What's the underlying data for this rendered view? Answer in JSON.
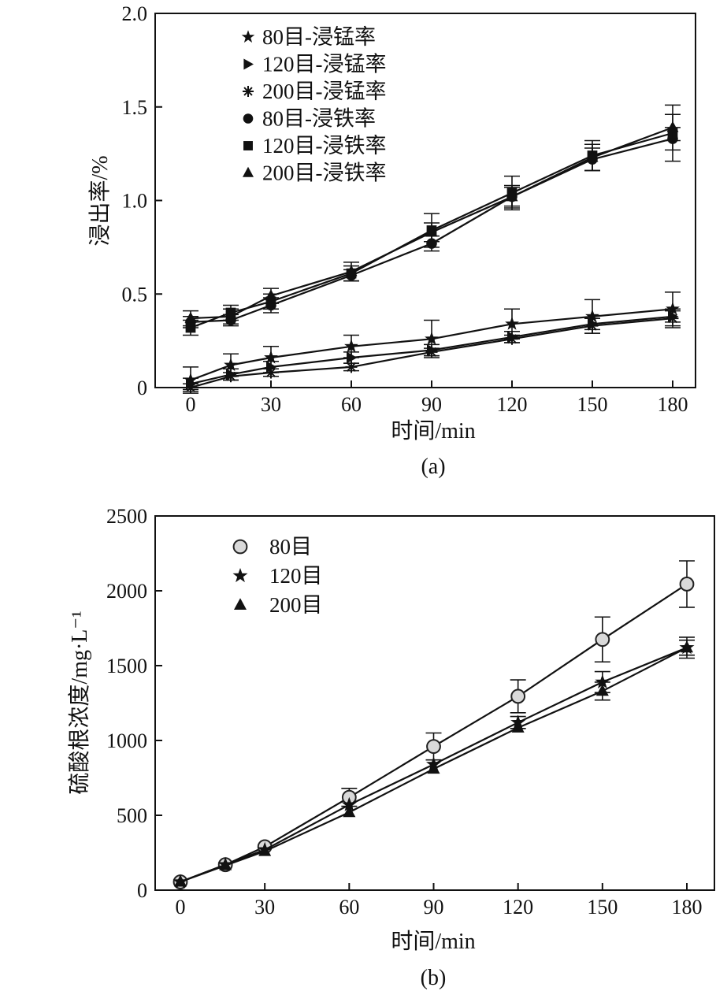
{
  "chart_data": [
    {
      "type": "line",
      "panel_label": "(a)",
      "xlabel": "时间/min",
      "ylabel": "浸出率/%",
      "xlim": [
        -12,
        190
      ],
      "ylim": [
        0,
        2.0
      ],
      "xticks": [
        0,
        30,
        60,
        90,
        120,
        150,
        180
      ],
      "xtick_labels": [
        "0",
        "30",
        "60",
        "90",
        "120",
        "150",
        "180"
      ],
      "yticks": [
        0,
        0.5,
        1.0,
        1.5,
        2.0
      ],
      "ytick_labels": [
        "0",
        "0.5",
        "1.0",
        "1.5",
        "2.0"
      ],
      "legend_position": "top-left",
      "series": [
        {
          "name": "80目-浸锰率",
          "marker": "star",
          "x": [
            0,
            15,
            30,
            60,
            90,
            120,
            150,
            180
          ],
          "values": [
            0.04,
            0.12,
            0.16,
            0.22,
            0.26,
            0.34,
            0.38,
            0.42
          ],
          "errors": [
            0.07,
            0.06,
            0.06,
            0.06,
            0.1,
            0.08,
            0.09,
            0.09
          ]
        },
        {
          "name": "120目-浸锰率",
          "marker": "triangle-right",
          "x": [
            0,
            15,
            30,
            60,
            90,
            120,
            150,
            180
          ],
          "values": [
            0.02,
            0.07,
            0.11,
            0.16,
            0.2,
            0.27,
            0.34,
            0.38
          ],
          "errors": [
            0.03,
            0.03,
            0.03,
            0.03,
            0.03,
            0.03,
            0.03,
            0.03
          ]
        },
        {
          "name": "200目-浸锰率",
          "marker": "asterisk",
          "x": [
            0,
            15,
            30,
            60,
            90,
            120,
            150,
            180
          ],
          "values": [
            0.0,
            0.06,
            0.08,
            0.11,
            0.19,
            0.26,
            0.33,
            0.37
          ],
          "errors": [
            0.02,
            0.02,
            0.02,
            0.02,
            0.02,
            0.02,
            0.04,
            0.05
          ]
        },
        {
          "name": "80目-浸铁率",
          "marker": "circle",
          "x": [
            0,
            15,
            30,
            60,
            90,
            120,
            150,
            180
          ],
          "values": [
            0.35,
            0.36,
            0.44,
            0.6,
            0.77,
            1.02,
            1.22,
            1.33
          ],
          "errors": [
            0.03,
            0.03,
            0.04,
            0.03,
            0.04,
            0.05,
            0.06,
            0.06
          ]
        },
        {
          "name": "120目-浸铁率",
          "marker": "square",
          "x": [
            0,
            15,
            30,
            60,
            90,
            120,
            150,
            180
          ],
          "values": [
            0.32,
            0.4,
            0.46,
            0.61,
            0.84,
            1.04,
            1.24,
            1.36
          ],
          "errors": [
            0.04,
            0.04,
            0.04,
            0.04,
            0.09,
            0.09,
            0.08,
            0.15
          ]
        },
        {
          "name": "200目-浸铁率",
          "marker": "triangle-up",
          "x": [
            0,
            15,
            30,
            60,
            90,
            120,
            150,
            180
          ],
          "values": [
            0.37,
            0.38,
            0.49,
            0.62,
            0.83,
            1.02,
            1.23,
            1.39
          ],
          "errors": [
            0.04,
            0.04,
            0.04,
            0.05,
            0.05,
            0.06,
            0.07,
            0.07
          ]
        }
      ]
    },
    {
      "type": "line",
      "panel_label": "(b)",
      "xlabel": "时间/min",
      "ylabel": "硫酸根浓度/mg·L⁻¹",
      "xlim": [
        -5,
        190
      ],
      "ylim": [
        0,
        2500
      ],
      "xticks": [
        0,
        30,
        60,
        90,
        120,
        150,
        180
      ],
      "xtick_labels": [
        "0",
        "30",
        "60",
        "90",
        "120",
        "150",
        "180"
      ],
      "yticks": [
        0,
        500,
        1000,
        1500,
        2000,
        2500
      ],
      "ytick_labels": [
        "0",
        "500",
        "1000",
        "1500",
        "2000",
        "2500"
      ],
      "legend_position": "top-left",
      "series": [
        {
          "name": "80目",
          "marker": "open-circle",
          "x": [
            0,
            16,
            30,
            60,
            90,
            120,
            150,
            180
          ],
          "values": [
            55,
            170,
            290,
            620,
            960,
            1295,
            1675,
            2045
          ],
          "errors": [
            0,
            0,
            0,
            60,
            90,
            110,
            150,
            155
          ]
        },
        {
          "name": "120目",
          "marker": "star",
          "x": [
            0,
            16,
            30,
            60,
            90,
            120,
            150,
            180
          ],
          "values": [
            55,
            170,
            270,
            570,
            840,
            1120,
            1390,
            1620
          ],
          "errors": [
            0,
            0,
            0,
            0,
            0,
            40,
            70,
            70
          ]
        },
        {
          "name": "200目",
          "marker": "triangle-up",
          "x": [
            0,
            16,
            30,
            60,
            90,
            120,
            150,
            180
          ],
          "values": [
            55,
            165,
            260,
            520,
            810,
            1085,
            1330,
            1620
          ],
          "errors": [
            0,
            0,
            0,
            0,
            0,
            0,
            60,
            50
          ]
        }
      ]
    }
  ]
}
